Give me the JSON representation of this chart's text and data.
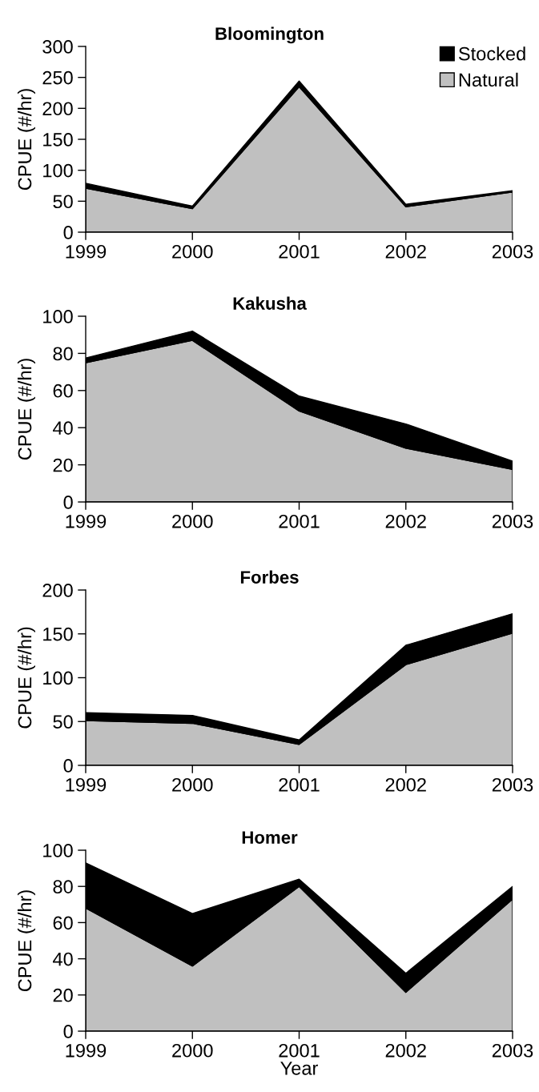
{
  "chart_data": [
    {
      "type": "area",
      "stacked": true,
      "title": "Bloomington",
      "ylabel": "CPUE (#/hr)",
      "categories": [
        "1999",
        "2000",
        "2001",
        "2002",
        "2003"
      ],
      "series": [
        {
          "name": "Natural",
          "color": "#c0c0c0",
          "values": [
            71,
            38,
            235,
            41,
            65
          ]
        },
        {
          "name": "Stocked",
          "color": "#000000",
          "values": [
            8,
            4,
            9,
            4,
            2
          ]
        }
      ],
      "ylim": [
        0,
        300
      ],
      "yticks": [
        0,
        50,
        100,
        150,
        200,
        250,
        300
      ],
      "legend": "top right"
    },
    {
      "type": "area",
      "stacked": true,
      "title": "Kakusha",
      "ylabel": "CPUE (#/hr)",
      "categories": [
        "1999",
        "2000",
        "2001",
        "2002",
        "2003"
      ],
      "series": [
        {
          "color": "#c0c0c0",
          "values": [
            75,
            87,
            49,
            29,
            17.5
          ]
        },
        {
          "color": "#000000",
          "values": [
            2.5,
            5,
            8,
            13,
            4.5
          ]
        }
      ],
      "ylim": [
        0,
        100
      ],
      "yticks": [
        0,
        20,
        40,
        60,
        80,
        100
      ]
    },
    {
      "type": "area",
      "stacked": true,
      "title": "Forbes",
      "ylabel": "CPUE (#/hr)",
      "categories": [
        "1999",
        "2000",
        "2001",
        "2002",
        "2003"
      ],
      "series": [
        {
          "color": "#c0c0c0",
          "values": [
            51,
            48,
            24,
            115,
            151
          ]
        },
        {
          "color": "#000000",
          "values": [
            9,
            9,
            5,
            22,
            22
          ]
        }
      ],
      "ylim": [
        0,
        200
      ],
      "yticks": [
        0,
        50,
        100,
        150,
        200
      ]
    },
    {
      "type": "area",
      "stacked": true,
      "title": "Homer",
      "ylabel": "CPUE (#/hr)",
      "xlabel": "Year",
      "categories": [
        "1999",
        "2000",
        "2001",
        "2002",
        "2003"
      ],
      "series": [
        {
          "color": "#c0c0c0",
          "values": [
            68,
            36,
            80,
            21.5,
            73
          ]
        },
        {
          "color": "#000000",
          "values": [
            25,
            29,
            4,
            10.5,
            7
          ]
        }
      ],
      "ylim": [
        0,
        100
      ],
      "yticks": [
        0,
        20,
        40,
        60,
        80,
        100
      ]
    }
  ]
}
